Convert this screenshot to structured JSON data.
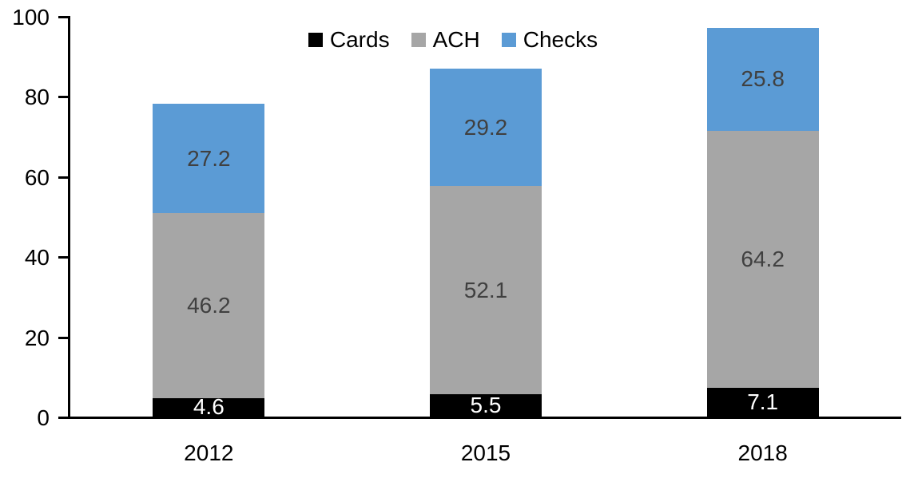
{
  "chart_data": {
    "type": "bar",
    "stacked": true,
    "title": "",
    "xlabel": "",
    "ylabel": "",
    "categories": [
      "2012",
      "2015",
      "2018"
    ],
    "series": [
      {
        "name": "Cards",
        "color": "#000000",
        "label_color": "#ffffff",
        "values": [
          4.6,
          5.5,
          7.1
        ]
      },
      {
        "name": "ACH",
        "color": "#a6a6a6",
        "label_color": "#404040",
        "values": [
          46.2,
          52.1,
          64.2
        ]
      },
      {
        "name": "Checks",
        "color": "#5b9bd5",
        "label_color": "#404040",
        "values": [
          27.2,
          29.2,
          25.8
        ]
      }
    ],
    "totals": [
      78.0,
      86.8,
      97.1
    ],
    "ylim": [
      0,
      100
    ],
    "y_ticks": [
      0,
      20,
      40,
      60,
      80,
      100
    ],
    "legend_position": "top",
    "legend_labels": [
      "Cards",
      "ACH",
      "Checks"
    ],
    "grid": false,
    "axis_color": "#000000",
    "background_color": "#ffffff",
    "data_labels_shown": true,
    "label_decimals": 1
  }
}
